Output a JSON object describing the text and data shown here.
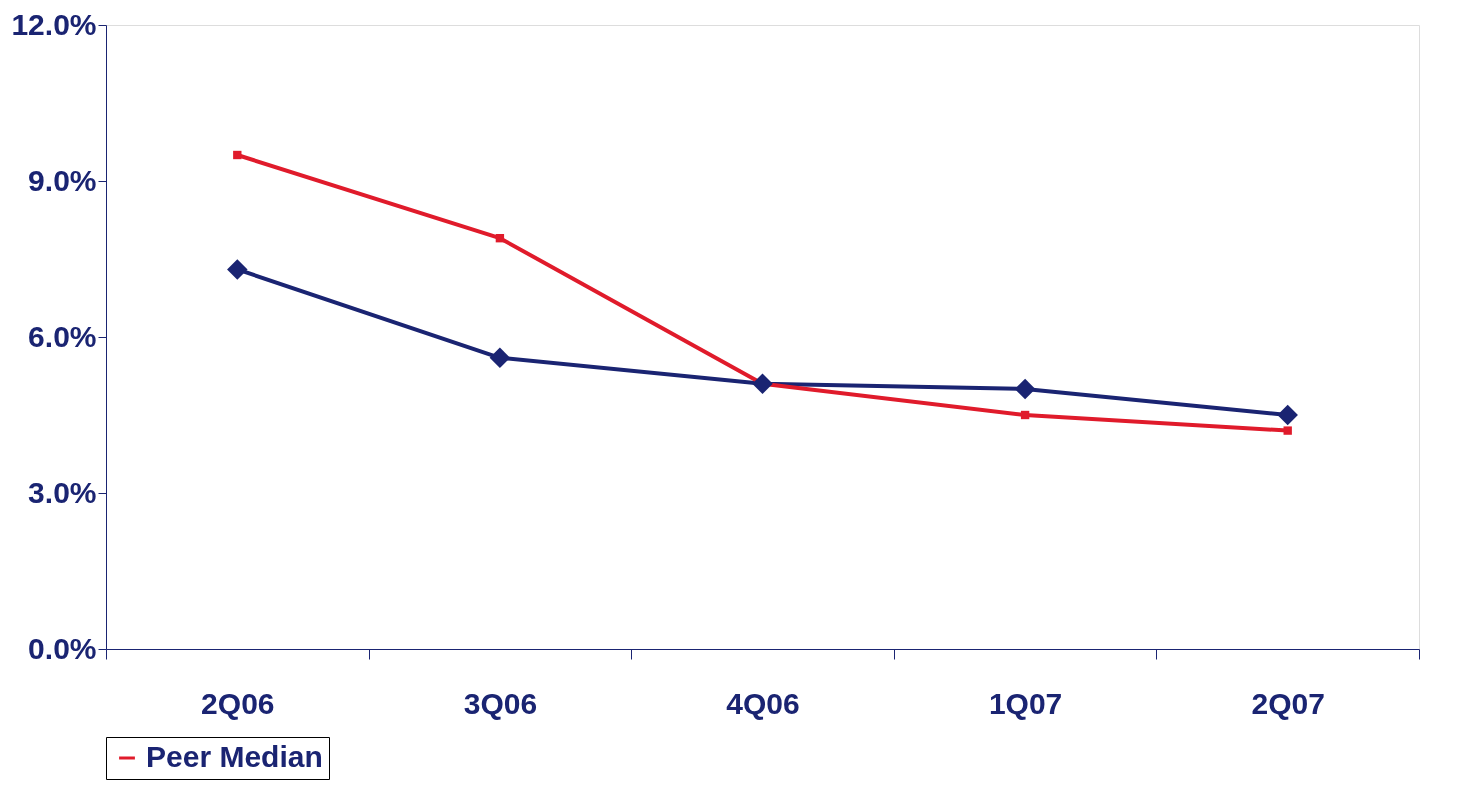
{
  "chart_data": {
    "type": "line",
    "categories": [
      "2Q06",
      "3Q06",
      "4Q06",
      "1Q07",
      "2Q07"
    ],
    "series": [
      {
        "color": "#1a2472",
        "marker": "diamond",
        "values": [
          7.3,
          5.6,
          5.1,
          5.0,
          4.5
        ]
      },
      {
        "name": "Peer Median",
        "color": "#e01b2b",
        "marker": "square",
        "values": [
          9.5,
          7.9,
          5.1,
          4.5,
          4.2
        ]
      }
    ],
    "ylim": [
      0,
      12
    ],
    "yticks": [
      {
        "value": 0,
        "label": "0.0%"
      },
      {
        "value": 3,
        "label": "3.0%"
      },
      {
        "value": 6,
        "label": "6.0%"
      },
      {
        "value": 9,
        "label": "9.0%"
      },
      {
        "value": 12,
        "label": "12.0%"
      }
    ],
    "grid": false,
    "legend": "bottom"
  }
}
